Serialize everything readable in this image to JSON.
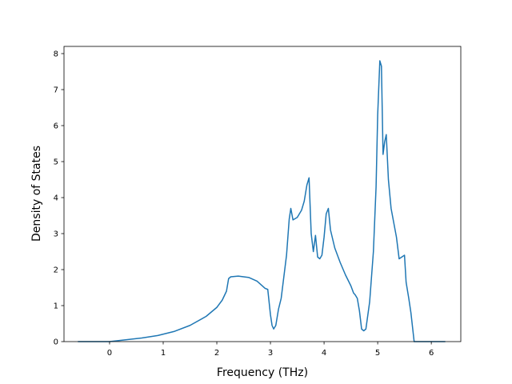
{
  "chart_data": {
    "type": "line",
    "title": "",
    "xlabel": "Frequency (THz)",
    "ylabel": "Density of States",
    "xlim": [
      -0.85,
      6.55
    ],
    "ylim": [
      0,
      8.2
    ],
    "xticks": [
      0,
      1,
      2,
      3,
      4,
      5,
      6
    ],
    "yticks": [
      0,
      1,
      2,
      3,
      4,
      5,
      6,
      7,
      8
    ],
    "grid": false,
    "legend": "none",
    "series": [
      {
        "color": "#1f77b4",
        "x": [
          -0.58,
          -0.3,
          0.0,
          0.3,
          0.6,
          0.9,
          1.2,
          1.5,
          1.8,
          2.0,
          2.1,
          2.18,
          2.22,
          2.26,
          2.4,
          2.6,
          2.75,
          2.9,
          2.95,
          3.0,
          3.03,
          3.06,
          3.1,
          3.15,
          3.2,
          3.25,
          3.3,
          3.35,
          3.38,
          3.42,
          3.5,
          3.58,
          3.63,
          3.68,
          3.72,
          3.76,
          3.8,
          3.84,
          3.88,
          3.92,
          3.96,
          4.0,
          4.04,
          4.08,
          4.12,
          4.2,
          4.3,
          4.4,
          4.5,
          4.55,
          4.58,
          4.62,
          4.66,
          4.7,
          4.74,
          4.78,
          4.85,
          4.92,
          4.97,
          5.0,
          5.04,
          5.07,
          5.1,
          5.13,
          5.16,
          5.2,
          5.25,
          5.35,
          5.4,
          5.5,
          5.53,
          5.58,
          5.62,
          5.68,
          5.75,
          6.0,
          6.25
        ],
        "y": [
          0.0,
          0.0,
          0.0,
          0.05,
          0.1,
          0.17,
          0.28,
          0.45,
          0.7,
          0.95,
          1.15,
          1.4,
          1.75,
          1.8,
          1.82,
          1.78,
          1.68,
          1.48,
          1.45,
          0.75,
          0.45,
          0.35,
          0.45,
          0.9,
          1.2,
          1.8,
          2.4,
          3.4,
          3.7,
          3.38,
          3.45,
          3.65,
          3.9,
          4.35,
          4.55,
          3.0,
          2.5,
          2.95,
          2.35,
          2.3,
          2.4,
          2.9,
          3.55,
          3.7,
          3.1,
          2.6,
          2.2,
          1.85,
          1.55,
          1.35,
          1.3,
          1.2,
          0.85,
          0.35,
          0.3,
          0.35,
          1.1,
          2.5,
          4.3,
          6.3,
          7.8,
          7.65,
          5.2,
          5.55,
          5.75,
          4.5,
          3.7,
          2.9,
          2.3,
          2.4,
          1.65,
          1.2,
          0.8,
          0.0,
          0.0,
          0.0,
          0.0
        ]
      }
    ]
  }
}
